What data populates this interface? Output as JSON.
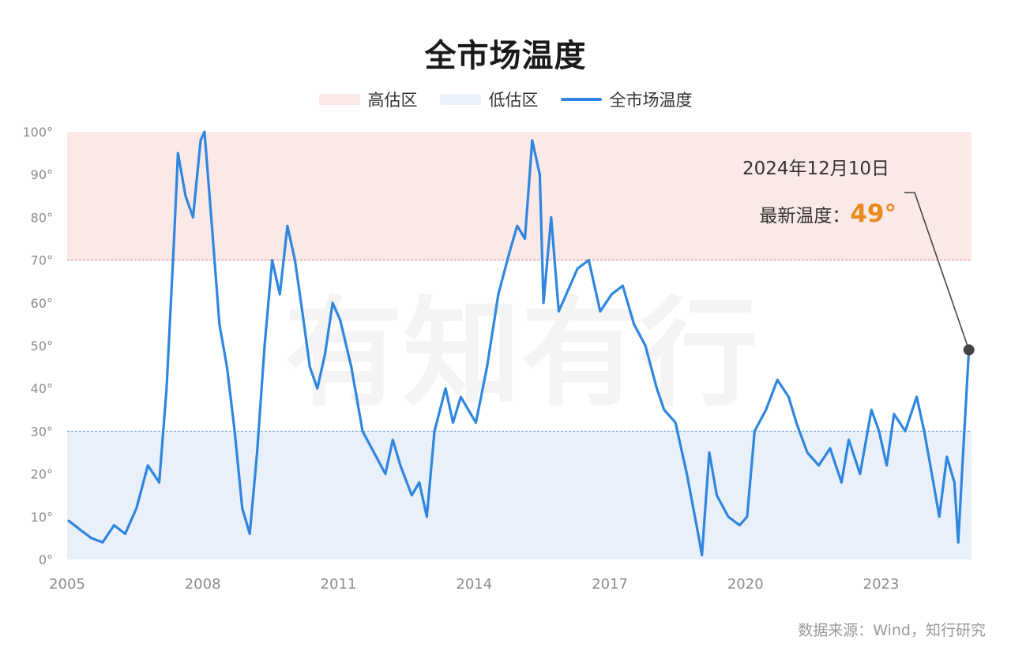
{
  "chart_data": {
    "type": "line",
    "title": "全市场温度",
    "legend": {
      "placement": "top-center",
      "items": [
        {
          "label": "高估区",
          "kind": "band"
        },
        {
          "label": "低估区",
          "kind": "band"
        },
        {
          "label": "全市场温度",
          "kind": "line"
        }
      ]
    },
    "x_axis": {
      "type": "date",
      "range": [
        "2005-01-01",
        "2024-12-31"
      ],
      "tick_labels": [
        "2005",
        "2008",
        "2011",
        "2014",
        "2017",
        "2020",
        "2023"
      ]
    },
    "y_axis": {
      "range": [
        0,
        100
      ],
      "unit": "°",
      "tick_labels": [
        "0°",
        "10°",
        "20°",
        "30°",
        "40°",
        "50°",
        "60°",
        "70°",
        "80°",
        "90°",
        "100°"
      ]
    },
    "grid": false,
    "zones": [
      {
        "name": "高估区",
        "from": 70,
        "to": 100,
        "color": "#fbe9e8",
        "line_color": "#e07a72"
      },
      {
        "name": "低估区",
        "from": 0,
        "to": 30,
        "color": "#e9f0fa",
        "line_color": "#5a9bd6"
      }
    ],
    "series": [
      {
        "name": "全市场温度",
        "color": "#2f86e0",
        "x": [
          "2005-01",
          "2005-04",
          "2005-07",
          "2005-10",
          "2006-01",
          "2006-04",
          "2006-07",
          "2006-10",
          "2007-01",
          "2007-03",
          "2007-05",
          "2007-06",
          "2007-08",
          "2007-10",
          "2007-12",
          "2008-01",
          "2008-03",
          "2008-05",
          "2008-07",
          "2008-09",
          "2008-11",
          "2009-01",
          "2009-03",
          "2009-05",
          "2009-07",
          "2009-09",
          "2009-11",
          "2010-01",
          "2010-03",
          "2010-05",
          "2010-07",
          "2010-09",
          "2010-11",
          "2011-01",
          "2011-04",
          "2011-07",
          "2011-10",
          "2012-01",
          "2012-03",
          "2012-05",
          "2012-08",
          "2012-10",
          "2012-12",
          "2013-02",
          "2013-05",
          "2013-07",
          "2013-09",
          "2013-11",
          "2014-01",
          "2014-04",
          "2014-07",
          "2014-10",
          "2014-12",
          "2015-02",
          "2015-04",
          "2015-06",
          "2015-07",
          "2015-09",
          "2015-11",
          "2016-01",
          "2016-04",
          "2016-07",
          "2016-10",
          "2017-01",
          "2017-04",
          "2017-07",
          "2017-10",
          "2018-01",
          "2018-03",
          "2018-06",
          "2018-09",
          "2018-12",
          "2019-01",
          "2019-03",
          "2019-05",
          "2019-08",
          "2019-11",
          "2020-01",
          "2020-03",
          "2020-06",
          "2020-09",
          "2020-12",
          "2021-02",
          "2021-05",
          "2021-08",
          "2021-11",
          "2022-02",
          "2022-04",
          "2022-07",
          "2022-10",
          "2022-12",
          "2023-02",
          "2023-04",
          "2023-07",
          "2023-10",
          "2023-12",
          "2024-02",
          "2024-04",
          "2024-06",
          "2024-08",
          "2024-09",
          "2024-10",
          "2024-12-10"
        ],
        "y": [
          9,
          7,
          5,
          4,
          8,
          6,
          12,
          22,
          18,
          40,
          75,
          95,
          85,
          80,
          98,
          100,
          78,
          55,
          45,
          30,
          12,
          6,
          25,
          50,
          70,
          62,
          78,
          70,
          58,
          45,
          40,
          48,
          60,
          56,
          45,
          30,
          25,
          20,
          28,
          22,
          15,
          18,
          10,
          30,
          40,
          32,
          38,
          35,
          32,
          45,
          62,
          72,
          78,
          75,
          98,
          90,
          60,
          80,
          58,
          62,
          68,
          70,
          58,
          62,
          64,
          55,
          50,
          40,
          35,
          32,
          20,
          6,
          1,
          25,
          15,
          10,
          8,
          10,
          30,
          35,
          42,
          38,
          32,
          25,
          22,
          26,
          18,
          28,
          20,
          35,
          30,
          22,
          34,
          30,
          38,
          30,
          20,
          10,
          24,
          18,
          4,
          20,
          49
        ]
      }
    ],
    "annotation": {
      "date_label": "2024年12月10日",
      "value_label": "最新温度：",
      "value": "49°",
      "value_color": "#e88a1e"
    },
    "watermark": "有知有行",
    "source": "数据来源：Wind，知行研究"
  }
}
